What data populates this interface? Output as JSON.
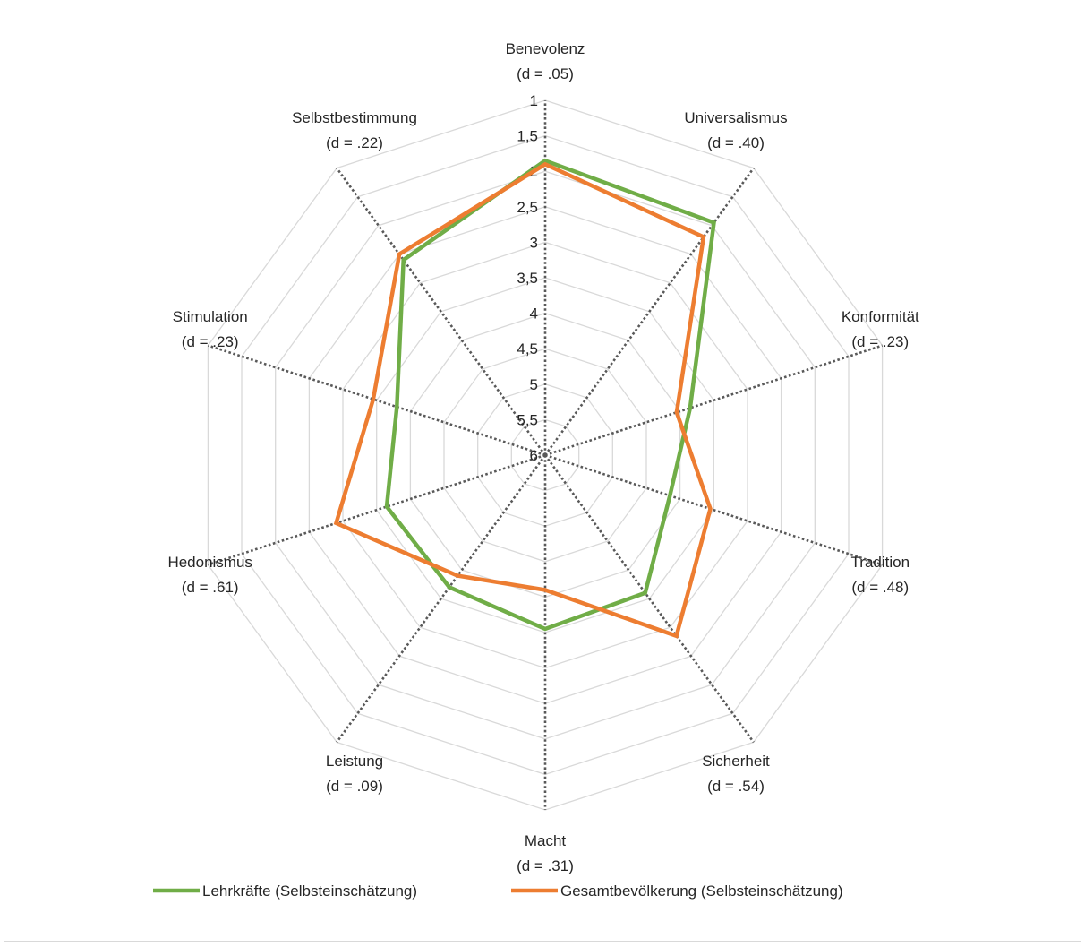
{
  "chart_data": {
    "type": "radar",
    "axis": {
      "reversed": true,
      "min": 1,
      "max": 6,
      "step": 0.5,
      "tick_labels": [
        "1",
        "1,5",
        "2",
        "2,5",
        "3",
        "3,5",
        "4",
        "4,5",
        "5",
        "5,5",
        "6"
      ],
      "grid": true
    },
    "categories": [
      {
        "name": "Benevolenz",
        "d": "(d = .05)"
      },
      {
        "name": "Universalismus",
        "d": "(d = .40)"
      },
      {
        "name": "Konformität",
        "d": "(d = .23)"
      },
      {
        "name": "Tradition",
        "d": "(d = .48)"
      },
      {
        "name": "Sicherheit",
        "d": "(d = .54)"
      },
      {
        "name": "Macht",
        "d": "(d = .31)"
      },
      {
        "name": "Leistung",
        "d": "(d = .09)"
      },
      {
        "name": "Hedonismus",
        "d": "(d = .61)"
      },
      {
        "name": "Stimulation",
        "d": "(d = .23)"
      },
      {
        "name": "Selbstbestimmung",
        "d": "(d = .22)"
      }
    ],
    "series": [
      {
        "name": "Lehrkräfte (Selbsteinschätzung)",
        "color": "#70ad47",
        "values": [
          1.85,
          1.95,
          3.85,
          4.15,
          3.6,
          3.55,
          3.7,
          3.65,
          3.8,
          2.6
        ]
      },
      {
        "name": "Gesamtbevölkerung (Selbsteinschätzung)",
        "color": "#ed7d31",
        "values": [
          1.9,
          2.2,
          4.05,
          3.55,
          2.85,
          4.1,
          3.9,
          2.9,
          3.45,
          2.5
        ]
      }
    ],
    "legend_position": "bottom"
  }
}
